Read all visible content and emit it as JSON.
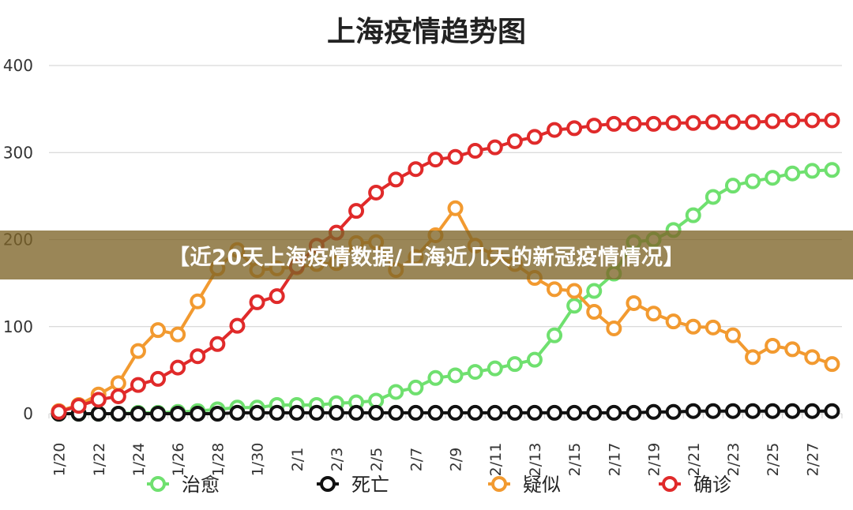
{
  "banner": {
    "text": "【近20天上海疫情数据/上海近几天的新冠疫情情况】"
  },
  "chart_data": {
    "type": "line",
    "title": "上海疫情趋势图",
    "xlabel": "",
    "ylabel": "",
    "ylim": [
      0,
      400
    ],
    "yticks": [
      0,
      100,
      200,
      300,
      400
    ],
    "grid": true,
    "legend_position": "bottom",
    "x": [
      "1/20",
      "1/21",
      "1/22",
      "1/23",
      "1/24",
      "1/25",
      "1/26",
      "1/27",
      "1/28",
      "1/29",
      "1/30",
      "1/31",
      "2/1",
      "2/2",
      "2/3",
      "2/4",
      "2/5",
      "2/6",
      "2/7",
      "2/8",
      "2/9",
      "2/10",
      "2/11",
      "2/12",
      "2/13",
      "2/14",
      "2/15",
      "2/16",
      "2/17",
      "2/18",
      "2/19",
      "2/20",
      "2/21",
      "2/22",
      "2/23",
      "2/24",
      "2/25",
      "2/26",
      "2/27",
      "2/28"
    ],
    "xtick_labels": [
      "1/20",
      "1/22",
      "1/24",
      "1/26",
      "1/28",
      "1/30",
      "2/1",
      "2/3",
      "2/5",
      "2/7",
      "2/9",
      "2/11",
      "2/13",
      "2/15",
      "2/17",
      "2/19",
      "2/21",
      "2/23",
      "2/25",
      "2/27"
    ],
    "series": [
      {
        "name": "治愈",
        "color": "#6fe06f",
        "values": [
          0,
          0,
          0,
          0,
          1,
          1,
          2,
          3,
          5,
          7,
          7,
          10,
          10,
          10,
          12,
          13,
          15,
          25,
          30,
          41,
          44,
          48,
          52,
          57,
          62,
          90,
          124,
          141,
          161,
          197,
          200,
          211,
          228,
          249,
          262,
          267,
          271,
          276,
          279,
          280
        ]
      },
      {
        "name": "死亡",
        "color": "#111111",
        "values": [
          0,
          0,
          0,
          0,
          0,
          0,
          0,
          0,
          0,
          1,
          1,
          1,
          1,
          1,
          1,
          1,
          1,
          1,
          1,
          1,
          1,
          1,
          1,
          1,
          1,
          1,
          1,
          1,
          1,
          1,
          2,
          2,
          3,
          3,
          3,
          3,
          3,
          3,
          3,
          3
        ]
      },
      {
        "name": "疑似",
        "color": "#f29a30",
        "values": [
          3,
          10,
          22,
          35,
          72,
          96,
          91,
          129,
          167,
          188,
          165,
          167,
          168,
          172,
          173,
          196,
          197,
          165,
          180,
          205,
          236,
          193,
          182,
          172,
          156,
          143,
          141,
          117,
          98,
          127,
          115,
          106,
          100,
          99,
          90,
          65,
          78,
          74,
          65,
          57
        ]
      },
      {
        "name": "确诊",
        "color": "#e02a2a",
        "values": [
          2,
          9,
          16,
          20,
          33,
          40,
          53,
          66,
          80,
          101,
          128,
          135,
          169,
          193,
          208,
          233,
          254,
          269,
          281,
          292,
          295,
          302,
          306,
          313,
          318,
          326,
          328,
          331,
          333,
          333,
          333,
          334,
          334,
          335,
          335,
          335,
          336,
          337,
          337,
          337
        ]
      }
    ]
  }
}
